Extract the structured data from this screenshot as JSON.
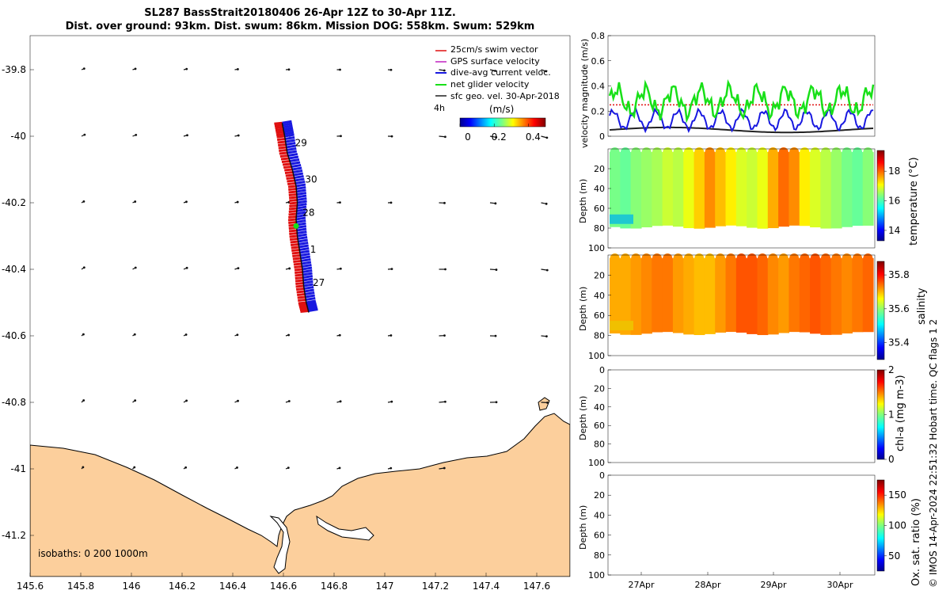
{
  "title": {
    "line1": "SL287 BassStrait20180406 26-Apr 12Z to 30-Apr 11Z.",
    "line2": "Dist. over ground: 93km. Dist. swum: 86km. Mission DOG: 558km. Swum: 529km"
  },
  "credit": "© IMOS 14-Apr-2024 22:51:32 Hobart time. QC flags 1  2",
  "colors": {
    "land": "#fccf9c",
    "swim": "#e01010",
    "gps": "#c020c0",
    "current": "#1818e0",
    "net": "#18e018",
    "geo": "#202020",
    "track": "#0000ff"
  },
  "chart_data": [
    {
      "type": "scatter",
      "name": "track-map",
      "xlim": [
        145.6,
        147.75
      ],
      "ylim": [
        -41.3,
        -39.7
      ],
      "x_ticks": [
        "145.6",
        "145.8",
        "146",
        "146.2",
        "146.4",
        "146.6",
        "146.8",
        "147",
        "147.2",
        "147.4",
        "147.6"
      ],
      "y_ticks": [
        "-39.8",
        "-40",
        "-40.2",
        "-40.4",
        "-40.6",
        "-40.8",
        "-41",
        "-41.2"
      ],
      "legend": [
        "25cm/s swim vector",
        "GPS surface velocity",
        "dive-avg current veloc.",
        "net glider velocity",
        "sfc geo. vel. 30-Apr-2018"
      ],
      "legend_extra": "4h",
      "colorbar": {
        "label": "(m/s)",
        "ticks": [
          "0",
          "0.2",
          "0.4"
        ],
        "range": [
          0,
          0.5
        ]
      },
      "day_labels": [
        {
          "text": "29",
          "lon": 146.63,
          "lat": -40.02
        },
        {
          "text": "30",
          "lon": 146.67,
          "lat": -40.13
        },
        {
          "text": "28",
          "lon": 146.66,
          "lat": -40.23
        },
        {
          "text": "1",
          "lon": 146.69,
          "lat": -40.34
        },
        {
          "text": "27",
          "lon": 146.7,
          "lat": -40.44
        }
      ],
      "track": [
        [
          146.595,
          -39.96
        ],
        [
          146.605,
          -40.0
        ],
        [
          146.615,
          -40.05
        ],
        [
          146.635,
          -40.1
        ],
        [
          146.65,
          -40.15
        ],
        [
          146.655,
          -40.2
        ],
        [
          146.65,
          -40.25
        ],
        [
          146.655,
          -40.3
        ],
        [
          146.665,
          -40.35
        ],
        [
          146.675,
          -40.4
        ],
        [
          146.68,
          -40.45
        ],
        [
          146.69,
          -40.5
        ],
        [
          146.7,
          -40.53
        ]
      ],
      "isobaths_label": "isobaths: 0   200  1000m"
    },
    {
      "type": "line",
      "name": "velocity",
      "ylabel": "velocity magnitude (m/s)",
      "ylim": [
        0,
        0.8
      ],
      "y_ticks": [
        "0",
        "0.2",
        "0.4",
        "0.6",
        "0.8"
      ],
      "xlim": [
        26.5,
        30.46
      ],
      "swim_speed": 0.25
    },
    {
      "type": "heatmap",
      "name": "temperature",
      "ylabel": "Depth (m)",
      "clabel": "temperature (°C)",
      "y_ticks": [
        "20",
        "40",
        "60",
        "80",
        "100"
      ],
      "c_ticks": [
        "14",
        "16",
        "18"
      ],
      "crange": [
        13.3,
        19.4
      ],
      "columns": [
        16.3,
        16.2,
        16.4,
        16.5,
        16.6,
        16.8,
        16.7,
        17.0,
        17.4,
        17.8,
        17.5,
        17.2,
        16.9,
        16.8,
        17.0,
        17.6,
        18.0,
        17.8,
        17.2,
        16.9,
        16.7,
        16.5,
        16.3,
        16.2,
        16.4
      ]
    },
    {
      "type": "heatmap",
      "name": "salinity",
      "ylabel": "Depth (m)",
      "clabel": "salinity",
      "y_ticks": [
        "20",
        "40",
        "60",
        "80",
        "100"
      ],
      "c_ticks": [
        "35.4",
        "35.6",
        "35.8"
      ],
      "crange": [
        35.3,
        35.88
      ],
      "columns": [
        35.71,
        35.71,
        35.72,
        35.73,
        35.74,
        35.74,
        35.72,
        35.71,
        35.7,
        35.7,
        35.72,
        35.74,
        35.76,
        35.76,
        35.75,
        35.73,
        35.72,
        35.74,
        35.75,
        35.76,
        35.75,
        35.74,
        35.73,
        35.74,
        35.75
      ]
    },
    {
      "type": "heatmap",
      "name": "chla",
      "ylabel": "Depth (m)",
      "clabel": "chl-a (mg m-3)",
      "y_ticks": [
        "0",
        "20",
        "40",
        "60",
        "80",
        "100"
      ],
      "c_ticks": [
        "0",
        "1",
        "2"
      ],
      "crange": [
        0,
        2
      ]
    },
    {
      "type": "heatmap",
      "name": "oxygen",
      "ylabel": "Depth (m)",
      "clabel": "Ox. sat. ratio (%)",
      "y_ticks": [
        "0",
        "20",
        "40",
        "60",
        "80",
        "100"
      ],
      "c_ticks": [
        "50",
        "100",
        "150"
      ],
      "crange": [
        25,
        175
      ],
      "x_ticks": [
        "27Apr",
        "28Apr",
        "29Apr",
        "30Apr"
      ]
    }
  ]
}
